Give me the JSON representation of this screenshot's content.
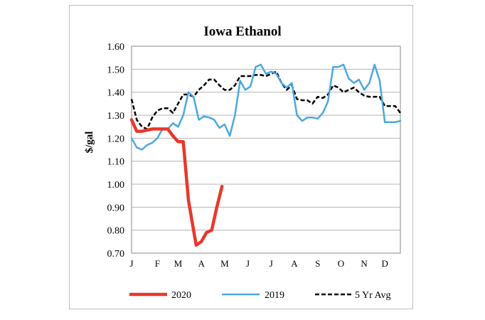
{
  "chart_data": {
    "type": "line",
    "title": "Iowa Ethanol",
    "xlabel": "",
    "ylabel": "$/gal",
    "ylim": [
      0.7,
      1.6
    ],
    "ytick_labels": [
      "1.60",
      "1.50",
      "1.40",
      "1.30",
      "1.20",
      "1.10",
      "1.00",
      "0.90",
      "0.80",
      "0.70"
    ],
    "ytick_values": [
      1.6,
      1.5,
      1.4,
      1.3,
      1.2,
      1.1,
      1.0,
      0.9,
      0.8,
      0.7
    ],
    "x_domain": [
      1,
      53
    ],
    "x_unit": "week of year",
    "month_ticks": [
      {
        "label": "J",
        "week": 1
      },
      {
        "label": "F",
        "week": 6
      },
      {
        "label": "M",
        "week": 10
      },
      {
        "label": "A",
        "week": 14.5
      },
      {
        "label": "M",
        "week": 19
      },
      {
        "label": "J",
        "week": 23.5
      },
      {
        "label": "J",
        "week": 28
      },
      {
        "label": "A",
        "week": 32.5
      },
      {
        "label": "S",
        "week": 37
      },
      {
        "label": "O",
        "week": 41.5
      },
      {
        "label": "N",
        "week": 46
      },
      {
        "label": "D",
        "week": 50
      }
    ],
    "gridlines": "horizontal",
    "legend_position": "bottom",
    "series": [
      {
        "name": "2020",
        "color": "#e8382b",
        "style": "solid-thick",
        "points": [
          [
            1,
            1.28
          ],
          [
            2,
            1.23
          ],
          [
            3,
            1.23
          ],
          [
            4,
            1.235
          ],
          [
            5,
            1.24
          ],
          [
            6,
            1.24
          ],
          [
            7,
            1.24
          ],
          [
            8,
            1.24
          ],
          [
            9,
            1.21
          ],
          [
            10,
            1.185
          ],
          [
            11,
            1.185
          ],
          [
            12,
            0.93
          ],
          [
            13,
            0.8
          ],
          [
            13.5,
            0.735
          ],
          [
            14.5,
            0.75
          ],
          [
            15.5,
            0.79
          ],
          [
            16.5,
            0.8
          ],
          [
            17.5,
            0.9
          ],
          [
            18.5,
            0.99
          ]
        ]
      },
      {
        "name": "2019",
        "color": "#4aa8e0",
        "style": "solid",
        "points": [
          [
            1,
            1.2
          ],
          [
            2,
            1.16
          ],
          [
            3,
            1.15
          ],
          [
            4,
            1.17
          ],
          [
            5,
            1.18
          ],
          [
            6,
            1.2
          ],
          [
            7,
            1.24
          ],
          [
            8,
            1.24
          ],
          [
            9,
            1.265
          ],
          [
            10,
            1.25
          ],
          [
            11,
            1.3
          ],
          [
            12,
            1.4
          ],
          [
            13,
            1.38
          ],
          [
            14,
            1.28
          ],
          [
            15,
            1.295
          ],
          [
            16,
            1.29
          ],
          [
            17,
            1.28
          ],
          [
            18,
            1.245
          ],
          [
            19,
            1.26
          ],
          [
            20,
            1.21
          ],
          [
            21,
            1.3
          ],
          [
            22,
            1.45
          ],
          [
            23,
            1.41
          ],
          [
            24,
            1.425
          ],
          [
            25,
            1.51
          ],
          [
            26,
            1.52
          ],
          [
            27,
            1.48
          ],
          [
            28,
            1.49
          ],
          [
            29,
            1.48
          ],
          [
            30,
            1.44
          ],
          [
            31,
            1.42
          ],
          [
            32,
            1.44
          ],
          [
            33,
            1.3
          ],
          [
            34,
            1.275
          ],
          [
            35,
            1.29
          ],
          [
            36,
            1.29
          ],
          [
            37,
            1.285
          ],
          [
            38,
            1.31
          ],
          [
            39,
            1.36
          ],
          [
            40,
            1.51
          ],
          [
            41,
            1.51
          ],
          [
            42,
            1.52
          ],
          [
            43,
            1.46
          ],
          [
            44,
            1.44
          ],
          [
            45,
            1.455
          ],
          [
            46,
            1.41
          ],
          [
            47,
            1.44
          ],
          [
            48,
            1.52
          ],
          [
            49,
            1.45
          ],
          [
            50,
            1.27
          ],
          [
            51,
            1.27
          ],
          [
            52,
            1.27
          ],
          [
            53,
            1.275
          ]
        ]
      },
      {
        "name": "5 Yr Avg",
        "color": "#000000",
        "style": "dashed",
        "points": [
          [
            1,
            1.37
          ],
          [
            2,
            1.28
          ],
          [
            3,
            1.25
          ],
          [
            4,
            1.24
          ],
          [
            5,
            1.29
          ],
          [
            6,
            1.32
          ],
          [
            7,
            1.33
          ],
          [
            8,
            1.33
          ],
          [
            9,
            1.31
          ],
          [
            10,
            1.35
          ],
          [
            11,
            1.39
          ],
          [
            12,
            1.39
          ],
          [
            13,
            1.38
          ],
          [
            14,
            1.41
          ],
          [
            15,
            1.43
          ],
          [
            16,
            1.455
          ],
          [
            17,
            1.455
          ],
          [
            18,
            1.43
          ],
          [
            19,
            1.41
          ],
          [
            20,
            1.41
          ],
          [
            21,
            1.43
          ],
          [
            22,
            1.47
          ],
          [
            23,
            1.47
          ],
          [
            24,
            1.47
          ],
          [
            25,
            1.475
          ],
          [
            26,
            1.475
          ],
          [
            27,
            1.47
          ],
          [
            28,
            1.48
          ],
          [
            29,
            1.49
          ],
          [
            30,
            1.44
          ],
          [
            31,
            1.41
          ],
          [
            32,
            1.43
          ],
          [
            33,
            1.37
          ],
          [
            34,
            1.365
          ],
          [
            35,
            1.365
          ],
          [
            36,
            1.35
          ],
          [
            37,
            1.38
          ],
          [
            38,
            1.375
          ],
          [
            39,
            1.39
          ],
          [
            40,
            1.43
          ],
          [
            41,
            1.42
          ],
          [
            42,
            1.4
          ],
          [
            43,
            1.41
          ],
          [
            44,
            1.42
          ],
          [
            45,
            1.4
          ],
          [
            46,
            1.385
          ],
          [
            47,
            1.38
          ],
          [
            48,
            1.38
          ],
          [
            49,
            1.38
          ],
          [
            50,
            1.34
          ],
          [
            51,
            1.34
          ],
          [
            52,
            1.34
          ],
          [
            53,
            1.31
          ]
        ]
      }
    ]
  }
}
